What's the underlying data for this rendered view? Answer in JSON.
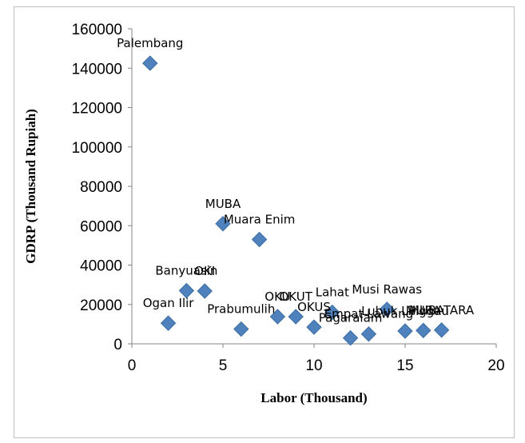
{
  "chart_data": {
    "type": "scatter",
    "title": "",
    "xlabel": "Labor (Thousand)",
    "ylabel": "GDRP (Thousand Rupiah)",
    "xlim": [
      0,
      20
    ],
    "ylim": [
      0,
      160000
    ],
    "x_ticks": [
      "0",
      "5",
      "10",
      "15",
      "20"
    ],
    "y_ticks": [
      "0",
      "20000",
      "40000",
      "60000",
      "80000",
      "100000",
      "120000",
      "140000",
      "160000"
    ],
    "grid": false,
    "legend": "none",
    "marker_color": "#4f81bd",
    "points": [
      {
        "label": "Palembang",
        "x": 1,
        "y": 142500
      },
      {
        "label": "Ogan Ilir",
        "x": 2,
        "y": 10500
      },
      {
        "label": "Banyuasin",
        "x": 3,
        "y": 27000
      },
      {
        "label": "OKI",
        "x": 4,
        "y": 26800
      },
      {
        "label": "MUBA",
        "x": 5,
        "y": 61000
      },
      {
        "label": "Prabumulih",
        "x": 6,
        "y": 7500
      },
      {
        "label": "Muara Enim",
        "x": 7,
        "y": 53000
      },
      {
        "label": "OKU",
        "x": 8,
        "y": 13800
      },
      {
        "label": "OKUT",
        "x": 9,
        "y": 13800
      },
      {
        "label": "OKUS",
        "x": 10,
        "y": 8500
      },
      {
        "label": "Lahat",
        "x": 11,
        "y": 16000
      },
      {
        "label": "Pagaralam",
        "x": 12,
        "y": 3000
      },
      {
        "label": "Empat Lawang",
        "x": 13,
        "y": 5000
      },
      {
        "label": "Musi Rawas",
        "x": 14,
        "y": 17500
      },
      {
        "label": "Lubuk Linggau",
        "x": 15,
        "y": 6500
      },
      {
        "label": "MURA",
        "x": 16,
        "y": 6800
      },
      {
        "label": "MURATARA",
        "x": 17,
        "y": 7000
      }
    ]
  }
}
